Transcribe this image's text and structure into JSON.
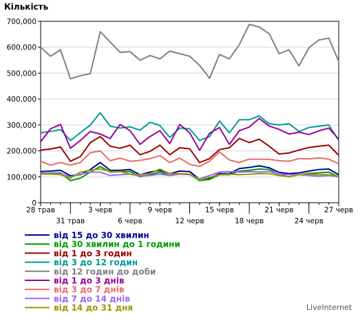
{
  "chart_data": {
    "type": "line",
    "ylabel": "Кількість",
    "credit": "LiveInternet",
    "ylim": [
      0,
      700000
    ],
    "y_ticks": [
      "0",
      "100,000",
      "200,000",
      "300,000",
      "400,000",
      "500,000",
      "600,000",
      "700,000"
    ],
    "x_tick_labels": [
      {
        "index": 0,
        "label": "28 трав",
        "row": 0
      },
      {
        "index": 3,
        "label": "31 трав",
        "row": 1
      },
      {
        "index": 6,
        "label": "3 черв",
        "row": 0
      },
      {
        "index": 9,
        "label": "6 черв",
        "row": 1
      },
      {
        "index": 12,
        "label": "9 черв",
        "row": 0
      },
      {
        "index": 15,
        "label": "12 черв",
        "row": 1
      },
      {
        "index": 18,
        "label": "15 черв",
        "row": 0
      },
      {
        "index": 21,
        "label": "18 черв",
        "row": 1
      },
      {
        "index": 24,
        "label": "21 черв",
        "row": 0
      },
      {
        "index": 27,
        "label": "24 черв",
        "row": 1
      },
      {
        "index": 30,
        "label": "27 черв",
        "row": 0
      }
    ],
    "grid": true,
    "legend_position": "bottom-left",
    "series": [
      {
        "name": "від 12 годин до доби",
        "color": "#808080",
        "values": [
          600000,
          565000,
          590000,
          478000,
          490000,
          498000,
          660000,
          620000,
          580000,
          583000,
          550000,
          568000,
          555000,
          585000,
          575000,
          565000,
          530000,
          480000,
          572000,
          555000,
          610000,
          688000,
          678000,
          652000,
          575000,
          590000,
          528000,
          598000,
          628000,
          635000,
          545000
        ]
      },
      {
        "name": "від 3 до 12 годин",
        "color": "#009999",
        "values": [
          270000,
          275000,
          282000,
          240000,
          270000,
          300000,
          347000,
          295000,
          288000,
          293000,
          280000,
          310000,
          298000,
          252000,
          288000,
          285000,
          240000,
          255000,
          315000,
          270000,
          320000,
          320000,
          335000,
          305000,
          300000,
          305000,
          275000,
          290000,
          295000,
          300000,
          240000
        ]
      },
      {
        "name": "від 1 до 3 днів",
        "color": "#990099",
        "values": [
          235000,
          285000,
          302000,
          210000,
          240000,
          275000,
          265000,
          248000,
          302000,
          278000,
          225000,
          255000,
          278000,
          228000,
          302000,
          270000,
          202000,
          268000,
          290000,
          225000,
          278000,
          292000,
          325000,
          296000,
          283000,
          265000,
          272000,
          263000,
          277000,
          288000,
          245000
        ]
      },
      {
        "name": "від 1 до 3 годин",
        "color": "#990000",
        "values": [
          203000,
          207000,
          215000,
          160000,
          178000,
          232000,
          255000,
          218000,
          210000,
          222000,
          185000,
          198000,
          222000,
          185000,
          212000,
          208000,
          155000,
          170000,
          205000,
          212000,
          248000,
          232000,
          245000,
          218000,
          188000,
          192000,
          203000,
          213000,
          218000,
          222000,
          183000
        ]
      },
      {
        "name": "від 3 до 7 днів",
        "color": "#e76b6b",
        "values": [
          160000,
          145000,
          155000,
          145000,
          155000,
          193000,
          200000,
          162000,
          172000,
          160000,
          163000,
          170000,
          182000,
          155000,
          172000,
          148000,
          140000,
          160000,
          196000,
          165000,
          155000,
          168000,
          168000,
          167000,
          162000,
          160000,
          170000,
          169000,
          173000,
          168000,
          150000
        ]
      },
      {
        "name": "від 15 до 30 хвилин",
        "color": "#000099",
        "values": [
          120000,
          122000,
          125000,
          104000,
          108000,
          128000,
          155000,
          125000,
          125000,
          128000,
          108000,
          118000,
          125000,
          112000,
          122000,
          120000,
          90000,
          95000,
          112000,
          112000,
          132000,
          136000,
          142000,
          135000,
          117000,
          112000,
          115000,
          122000,
          128000,
          130000,
          108000
        ]
      },
      {
        "name": "від 30 хвилин до 1 години",
        "color": "#009900",
        "values": [
          112000,
          114000,
          115000,
          85000,
          95000,
          118000,
          140000,
          118000,
          120000,
          120000,
          100000,
          108000,
          118000,
          105000,
          112000,
          110000,
          85000,
          90000,
          108000,
          108000,
          122000,
          125000,
          130000,
          128000,
          108000,
          100000,
          108000,
          113000,
          115000,
          118000,
          100000
        ]
      },
      {
        "name": "від 7 до 14 днів",
        "color": "#9966ff",
        "values": [
          115000,
          112000,
          112000,
          100000,
          110000,
          118000,
          118000,
          105000,
          108000,
          110000,
          103000,
          105000,
          110000,
          105000,
          110000,
          108000,
          92000,
          105000,
          118000,
          120000,
          118000,
          120000,
          118000,
          120000,
          110000,
          108000,
          108000,
          105000,
          102000,
          105000,
          100000
        ]
      },
      {
        "name": "від 14 до 31 дня",
        "color": "#999900",
        "values": [
          110000,
          110000,
          108000,
          95000,
          118000,
          125000,
          130000,
          120000,
          120000,
          110000,
          108000,
          112000,
          130000,
          112000,
          112000,
          110000,
          88000,
          98000,
          108000,
          110000,
          108000,
          110000,
          112000,
          112000,
          105000,
          100000,
          108000,
          110000,
          108000,
          108000,
          103000
        ]
      }
    ],
    "legend_order": [
      "від 15 до 30 хвилин",
      "від 30 хвилин до 1 години",
      "від 1 до 3 годин",
      "від 3 до 12 годин",
      "від 12 годин до доби",
      "від 1 до 3 днів",
      "від 3 до 7 днів",
      "від 7 до 14 днів",
      "від 14 до 31 дня"
    ]
  }
}
